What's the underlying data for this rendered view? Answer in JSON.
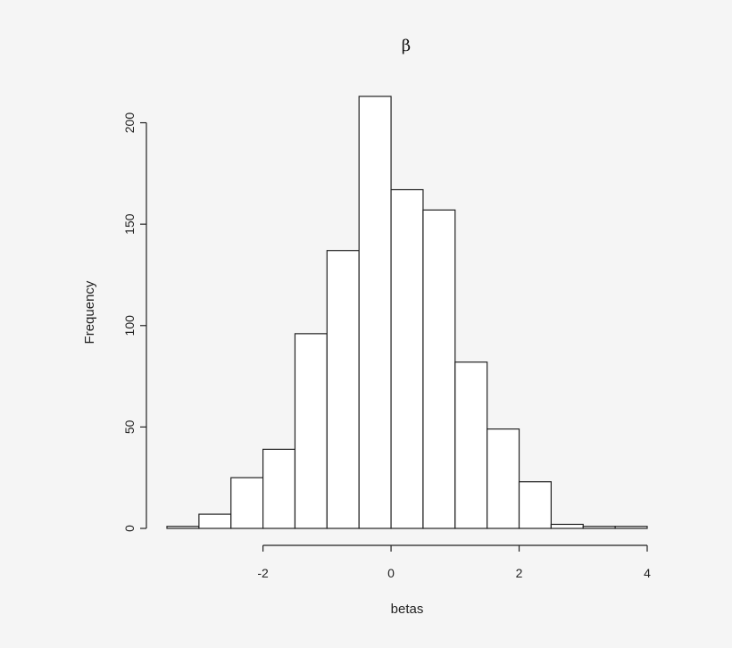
{
  "chart_data": {
    "type": "bar",
    "title": "β",
    "xlabel": "betas",
    "ylabel": "Frequency",
    "bin_edges": [
      -3.5,
      -3.0,
      -2.5,
      -2.0,
      -1.5,
      -1.0,
      -0.5,
      0.0,
      0.5,
      1.0,
      1.5,
      2.0,
      2.5,
      3.0,
      3.5,
      4.0
    ],
    "values": [
      1,
      7,
      25,
      39,
      96,
      137,
      213,
      167,
      157,
      82,
      49,
      23,
      2,
      1,
      1
    ],
    "xlim": [
      -3.5,
      4.0
    ],
    "ylim": [
      0,
      213
    ],
    "x_ticks": [
      -2,
      0,
      2,
      4
    ],
    "x_tick_labels": [
      "-2",
      "0",
      "2",
      "4"
    ],
    "y_ticks": [
      0,
      50,
      100,
      150,
      200
    ],
    "y_tick_labels": [
      "0",
      "50",
      "100",
      "150",
      "200"
    ],
    "grid": false,
    "legend": "none",
    "colors": {
      "bar_fill": "#ffffff",
      "bar_stroke": "#222222",
      "background": "#f5f5f5"
    }
  }
}
